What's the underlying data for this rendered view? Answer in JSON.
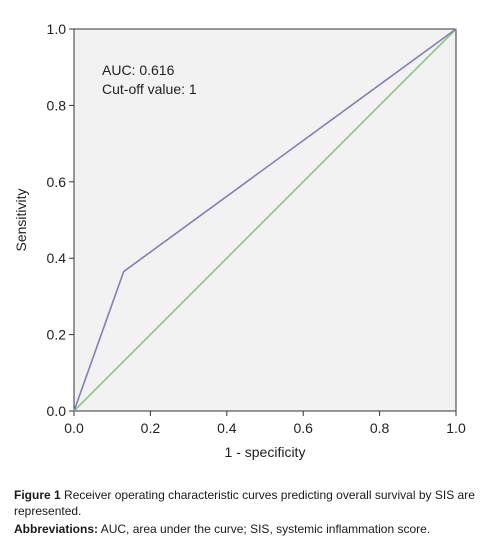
{
  "chart_data": {
    "type": "line",
    "title": "",
    "xlabel": "1 - specificity",
    "ylabel": "Sensitivity",
    "xlim": [
      0,
      1
    ],
    "ylim": [
      0,
      1
    ],
    "x_ticks": [
      "0.0",
      "0.2",
      "0.4",
      "0.6",
      "0.8",
      "1.0"
    ],
    "y_ticks": [
      "0.0",
      "0.2",
      "0.4",
      "0.6",
      "0.8",
      "1.0"
    ],
    "grid": false,
    "series": [
      {
        "x": [
          0,
          0.13,
          1
        ],
        "y": [
          0,
          0.365,
          1
        ],
        "color": "#7f80b8"
      },
      {
        "x": [
          0,
          1
        ],
        "y": [
          0,
          1
        ],
        "color": "#8cc97c"
      }
    ],
    "annotations": [
      "AUC: 0.616",
      "Cut-off value: 1"
    ]
  },
  "caption": {
    "figure_label": "Figure 1",
    "figure_text": "Receiver operating characteristic curves predicting overall survival by SIS are represented.",
    "abbrev_label": "Abbreviations:",
    "abbrev_text": "AUC, area under the curve; SIS, systemic inflammation score."
  }
}
